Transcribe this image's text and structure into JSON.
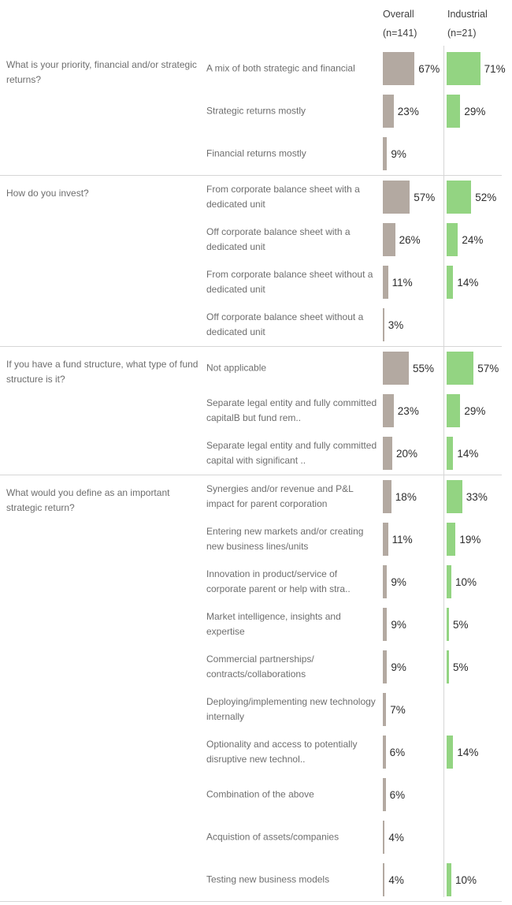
{
  "columns": {
    "overall": {
      "label": "Overall",
      "n": "(n=141)"
    },
    "industrial": {
      "label": "Industrial",
      "n": "(n=21)"
    }
  },
  "colors": {
    "overall_bar": "#b3a9a1",
    "industrial_bar": "#93d482",
    "divider": "#d6d6d6",
    "text": "#6e6e6e",
    "value_text": "#2d2d2d"
  },
  "chart_data": {
    "type": "bar",
    "orientation": "horizontal",
    "unit": "%",
    "series_names": [
      "Overall (n=141)",
      "Industrial (n=21)"
    ],
    "axis": {
      "min": 0,
      "max": 100,
      "grid": false,
      "value_labels": true
    },
    "sections": [
      {
        "question": "What is your priority, financial and/or strategic returns?",
        "rows": [
          {
            "label": "A mix of both strategic and financial",
            "overall": 67,
            "industrial": 71
          },
          {
            "label": "Strategic returns mostly",
            "overall": 23,
            "industrial": 29
          },
          {
            "label": "Financial returns mostly",
            "overall": 9,
            "industrial": null
          }
        ]
      },
      {
        "question": "How do you invest?",
        "rows": [
          {
            "label": "From corporate balance sheet with a dedicated unit",
            "overall": 57,
            "industrial": 52
          },
          {
            "label": "Off corporate balance sheet with a dedicated unit",
            "overall": 26,
            "industrial": 24
          },
          {
            "label": "From corporate balance sheet without a dedicated unit",
            "overall": 11,
            "industrial": 14
          },
          {
            "label": "Off corporate balance sheet without a dedicated unit",
            "overall": 3,
            "industrial": null
          }
        ]
      },
      {
        "question": "If you have a fund structure, what type of fund structure is it?",
        "rows": [
          {
            "label": "Not applicable",
            "overall": 55,
            "industrial": 57
          },
          {
            "label": "Separate legal entity and fully committed capitalB  but fund rem..",
            "overall": 23,
            "industrial": 29
          },
          {
            "label": "Separate legal entity and fully committed capital with significant ..",
            "overall": 20,
            "industrial": 14
          }
        ]
      },
      {
        "question": "What would you define as an important strategic return?",
        "rows": [
          {
            "label": "Synergies and/or revenue and P&L impact for parent corporation",
            "overall": 18,
            "industrial": 33
          },
          {
            "label": "Entering new markets and/or creating new business lines/units",
            "overall": 11,
            "industrial": 19
          },
          {
            "label": "Innovation in product/service of corporate parent or help with stra..",
            "overall": 9,
            "industrial": 10
          },
          {
            "label": "Market intelligence, insights and expertise",
            "overall": 9,
            "industrial": 5
          },
          {
            "label": "Commercial partnerships/ contracts/collaborations",
            "overall": 9,
            "industrial": 5
          },
          {
            "label": "Deploying/implementing new technology internally",
            "overall": 7,
            "industrial": null
          },
          {
            "label": "Optionality and access to potentially disruptive new technol..",
            "overall": 6,
            "industrial": 14
          },
          {
            "label": "Combination of the above",
            "overall": 6,
            "industrial": null
          },
          {
            "label": "Acquistion of assets/companies",
            "overall": 4,
            "industrial": null
          },
          {
            "label": "Testing new business models",
            "overall": 4,
            "industrial": 10
          }
        ]
      }
    ]
  }
}
